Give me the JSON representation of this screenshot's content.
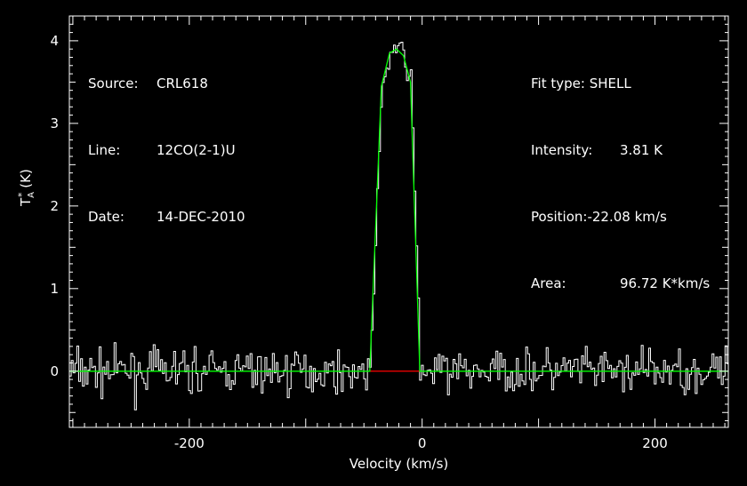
{
  "info_left": {
    "source_label": "Source:",
    "source_value": "CRL618",
    "line_label": "Line:",
    "line_value": "12CO(2-1)U",
    "date_label": "Date:",
    "date_value": "14-DEC-2010"
  },
  "info_right": {
    "fit_label": "Fit type:",
    "fit_value": "SHELL",
    "intensity_label": "Intensity:",
    "intensity_value": "3.81 K",
    "position_label": "Position:",
    "position_value": "-22.08 km/s",
    "area_label": "Area:",
    "area_value": "96.72 K*km/s"
  },
  "chart_data": {
    "type": "line",
    "xlabel": "Velocity (km/s)",
    "ylabel_main": "T",
    "ylabel_sub": "A",
    "ylabel_sup": "*",
    "ylabel_unit": "(K)",
    "xlim": [
      -303,
      263
    ],
    "ylim": [
      -0.68,
      4.3
    ],
    "xticks_major": [
      -200,
      0,
      200
    ],
    "xtick_labels": [
      "-200",
      "0",
      "200"
    ],
    "yticks_major": [
      0,
      1,
      2,
      3,
      4
    ],
    "ytick_labels": [
      "0",
      "1",
      "2",
      "3",
      "4"
    ],
    "grid": false,
    "colors": {
      "spectrum": "#ffffff",
      "fit": "#00ff00",
      "baseline_segment": "#ff0000",
      "axes": "#ffffff"
    },
    "series": [
      {
        "role": "fit",
        "x": [
          -303,
          -45,
          -35,
          -28,
          -22,
          -16,
          -10,
          -2,
          263
        ],
        "y": [
          0,
          0,
          3.45,
          3.85,
          3.9,
          3.82,
          3.5,
          0,
          0
        ]
      },
      {
        "role": "baseline_segment",
        "x": [
          -45,
          -2
        ],
        "y": [
          0,
          0
        ]
      },
      {
        "role": "spectrum",
        "x_start": -303,
        "x_step": 1.6,
        "noise_rms": 0.13,
        "profile": "shell fit plus noise"
      }
    ]
  }
}
